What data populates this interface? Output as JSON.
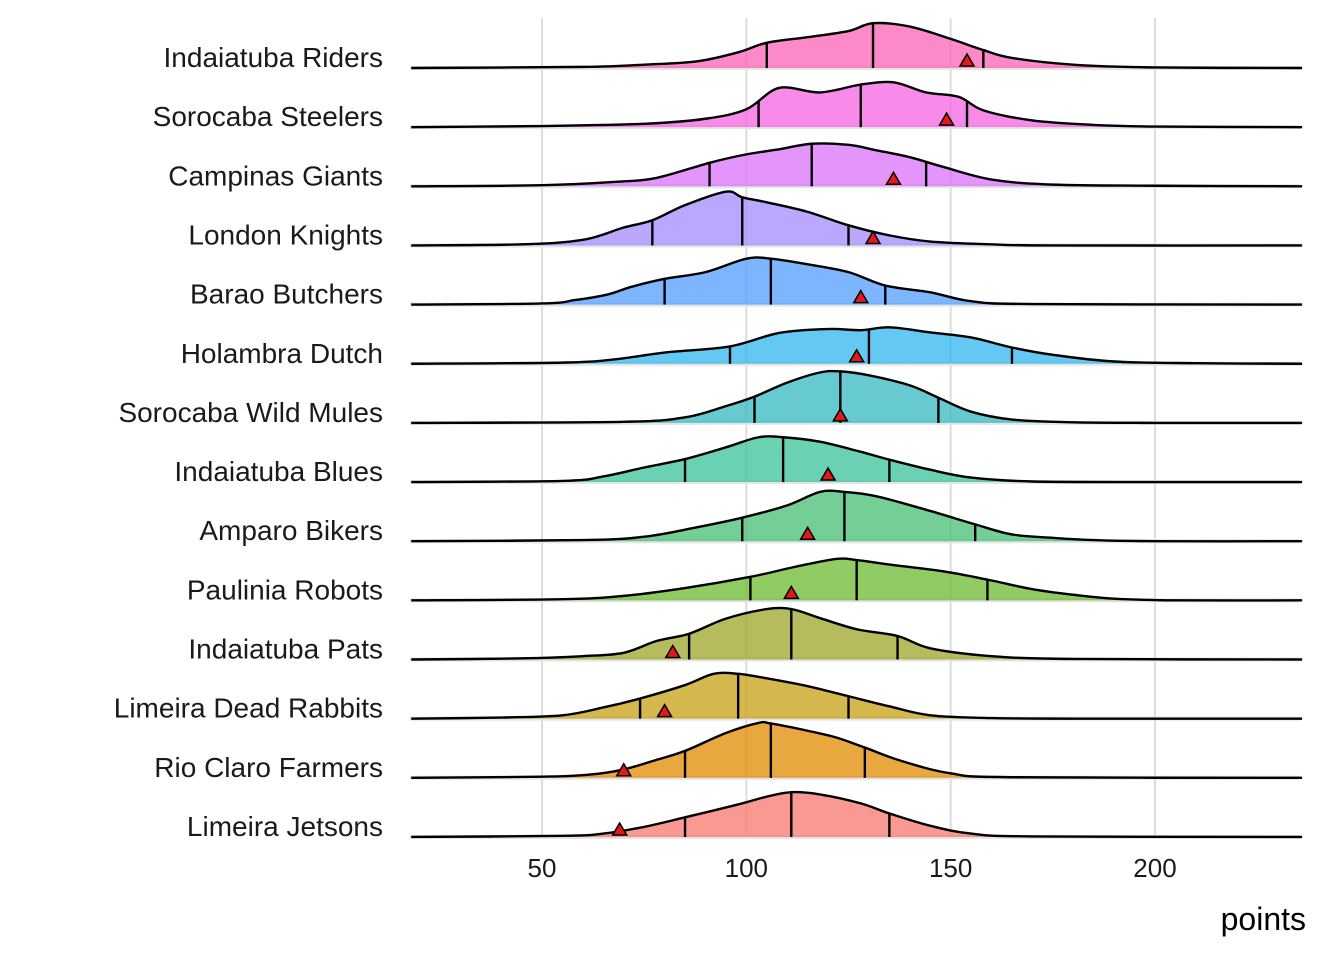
{
  "chart_data": {
    "type": "ridgeline",
    "xlabel": "points",
    "ylabel": "",
    "xlim": [
      18,
      236
    ],
    "x_ticks": [
      50,
      100,
      150,
      200
    ],
    "grid": true,
    "categories": [
      "Indaiatuba Riders",
      "Sorocaba Steelers",
      "Campinas Giants",
      "London Knights",
      "Barao Butchers",
      "Holambra Dutch",
      "Sorocaba Wild Mules",
      "Indaiatuba Blues",
      "Amparo Bikers",
      "Paulinia Robots",
      "Indaiatuba Pats",
      "Limeira Dead Rabbits",
      "Rio Claro Farmers",
      "Limeira Jetsons"
    ],
    "series": [
      {
        "name": "Indaiatuba Riders",
        "color": "#fb61b6",
        "quartiles": [
          105,
          131,
          158
        ],
        "marker": 154,
        "density_x": [
          18,
          60,
          75,
          88,
          98,
          105,
          115,
          125,
          131,
          140,
          150,
          158,
          165,
          180,
          200,
          236
        ],
        "density_h": [
          0,
          0.02,
          0.06,
          0.12,
          0.28,
          0.45,
          0.55,
          0.66,
          0.8,
          0.74,
          0.52,
          0.32,
          0.18,
          0.06,
          0.01,
          0
        ]
      },
      {
        "name": "Sorocaba Steelers",
        "color": "#f564e3",
        "quartiles": [
          103,
          128,
          154
        ],
        "marker": 149,
        "density_x": [
          18,
          50,
          75,
          90,
          100,
          108,
          118,
          128,
          136,
          144,
          152,
          158,
          170,
          185,
          200,
          236
        ],
        "density_h": [
          0,
          0.02,
          0.06,
          0.15,
          0.32,
          0.7,
          0.62,
          0.76,
          0.8,
          0.62,
          0.54,
          0.3,
          0.12,
          0.04,
          0.01,
          0
        ]
      },
      {
        "name": "Campinas Giants",
        "color": "#db72fb",
        "quartiles": [
          91,
          116,
          144
        ],
        "marker": 136,
        "density_x": [
          18,
          50,
          68,
          78,
          91,
          100,
          108,
          116,
          125,
          132,
          140,
          148,
          160,
          175,
          200,
          236
        ],
        "density_h": [
          0,
          0.02,
          0.08,
          0.15,
          0.42,
          0.57,
          0.66,
          0.76,
          0.74,
          0.64,
          0.52,
          0.35,
          0.12,
          0.03,
          0.01,
          0
        ]
      },
      {
        "name": "London Knights",
        "color": "#a58aff",
        "quartiles": [
          77,
          99,
          125
        ],
        "marker": 131,
        "density_x": [
          18,
          45,
          60,
          70,
          77,
          85,
          95,
          99,
          105,
          115,
          125,
          135,
          145,
          160,
          175,
          236
        ],
        "density_h": [
          0,
          0.02,
          0.1,
          0.32,
          0.45,
          0.72,
          0.96,
          0.86,
          0.77,
          0.6,
          0.36,
          0.18,
          0.07,
          0.02,
          0,
          0
        ]
      },
      {
        "name": "Barao Butchers",
        "color": "#529efe",
        "quartiles": [
          80,
          106,
          134
        ],
        "marker": 128,
        "density_x": [
          18,
          50,
          58,
          66,
          72,
          80,
          90,
          100,
          106,
          115,
          125,
          134,
          145,
          155,
          170,
          236
        ],
        "density_h": [
          0,
          0.02,
          0.08,
          0.18,
          0.32,
          0.46,
          0.58,
          0.82,
          0.82,
          0.72,
          0.58,
          0.34,
          0.22,
          0.06,
          0.01,
          0
        ]
      },
      {
        "name": "Holambra Dutch",
        "color": "#2fb5ed",
        "quartiles": [
          96,
          130,
          165
        ],
        "marker": 127,
        "density_x": [
          18,
          55,
          68,
          80,
          96,
          108,
          120,
          128,
          135,
          145,
          155,
          165,
          175,
          190,
          210,
          236
        ],
        "density_h": [
          0,
          0.02,
          0.08,
          0.2,
          0.31,
          0.55,
          0.62,
          0.6,
          0.65,
          0.56,
          0.47,
          0.29,
          0.16,
          0.04,
          0.01,
          0
        ]
      },
      {
        "name": "Sorocaba Wild Mules",
        "color": "#36b8c1",
        "quartiles": [
          102,
          123,
          147
        ],
        "marker": 123,
        "density_x": [
          18,
          70,
          85,
          95,
          102,
          110,
          118,
          123,
          130,
          140,
          147,
          155,
          165,
          180,
          200,
          236
        ],
        "density_h": [
          0,
          0.02,
          0.1,
          0.3,
          0.47,
          0.72,
          0.9,
          0.92,
          0.85,
          0.67,
          0.45,
          0.2,
          0.06,
          0.01,
          0,
          0
        ]
      },
      {
        "name": "Indaiatuba Blues",
        "color": "#39c29a",
        "quartiles": [
          85,
          109,
          135
        ],
        "marker": 120,
        "density_x": [
          18,
          55,
          65,
          75,
          85,
          95,
          103,
          109,
          118,
          128,
          135,
          145,
          155,
          170,
          200,
          236
        ],
        "density_h": [
          0,
          0.02,
          0.1,
          0.26,
          0.41,
          0.62,
          0.8,
          0.8,
          0.72,
          0.54,
          0.4,
          0.22,
          0.08,
          0.01,
          0,
          0
        ]
      },
      {
        "name": "Amparo Bikers",
        "color": "#44bf71",
        "quartiles": [
          99,
          124,
          156
        ],
        "marker": 115,
        "density_x": [
          18,
          60,
          75,
          88,
          99,
          110,
          118,
          124,
          132,
          145,
          156,
          165,
          175,
          185,
          200,
          236
        ],
        "density_h": [
          0,
          0.02,
          0.08,
          0.25,
          0.42,
          0.64,
          0.88,
          0.88,
          0.8,
          0.54,
          0.3,
          0.12,
          0.06,
          0.02,
          0,
          0
        ]
      },
      {
        "name": "Paulinia Robots",
        "color": "#6cba2f",
        "quartiles": [
          101,
          127,
          159
        ],
        "marker": 111,
        "density_x": [
          18,
          55,
          70,
          85,
          101,
          112,
          122,
          127,
          135,
          148,
          159,
          170,
          180,
          190,
          205,
          236
        ],
        "density_h": [
          0,
          0.02,
          0.08,
          0.22,
          0.42,
          0.6,
          0.74,
          0.72,
          0.64,
          0.52,
          0.37,
          0.2,
          0.1,
          0.03,
          0,
          0
        ]
      },
      {
        "name": "Indaiatuba Pats",
        "color": "#9ca628",
        "quartiles": [
          86,
          111,
          137
        ],
        "marker": 82,
        "density_x": [
          18,
          45,
          60,
          70,
          78,
          86,
          95,
          105,
          111,
          118,
          127,
          137,
          145,
          160,
          180,
          236
        ],
        "density_h": [
          0,
          0.02,
          0.06,
          0.12,
          0.33,
          0.46,
          0.73,
          0.9,
          0.9,
          0.74,
          0.54,
          0.42,
          0.2,
          0.06,
          0.01,
          0
        ]
      },
      {
        "name": "Limeira Dead Rabbits",
        "color": "#c5a011",
        "quartiles": [
          74,
          98,
          125
        ],
        "marker": 80,
        "density_x": [
          18,
          40,
          55,
          65,
          74,
          85,
          92,
          98,
          105,
          115,
          125,
          135,
          145,
          160,
          180,
          236
        ],
        "density_h": [
          0,
          0.02,
          0.06,
          0.2,
          0.36,
          0.6,
          0.8,
          0.8,
          0.72,
          0.58,
          0.4,
          0.22,
          0.06,
          0.01,
          0,
          0
        ]
      },
      {
        "name": "Rio Claro Farmers",
        "color": "#e18a00",
        "quartiles": [
          85,
          106,
          129
        ],
        "marker": 70,
        "density_x": [
          18,
          50,
          62,
          70,
          78,
          85,
          95,
          103,
          106,
          115,
          122,
          129,
          138,
          150,
          165,
          236
        ],
        "density_h": [
          0,
          0.02,
          0.06,
          0.15,
          0.32,
          0.48,
          0.8,
          0.98,
          0.97,
          0.84,
          0.72,
          0.54,
          0.3,
          0.08,
          0.01,
          0
        ]
      },
      {
        "name": "Limeira Jetsons",
        "color": "#f8766d",
        "quartiles": [
          85,
          111,
          135
        ],
        "marker": 69,
        "density_x": [
          18,
          55,
          65,
          75,
          85,
          98,
          105,
          111,
          118,
          128,
          135,
          145,
          155,
          170,
          236
        ],
        "density_h": [
          0,
          0.02,
          0.06,
          0.18,
          0.35,
          0.58,
          0.72,
          0.8,
          0.76,
          0.6,
          0.42,
          0.2,
          0.06,
          0.01,
          0
        ]
      }
    ]
  }
}
